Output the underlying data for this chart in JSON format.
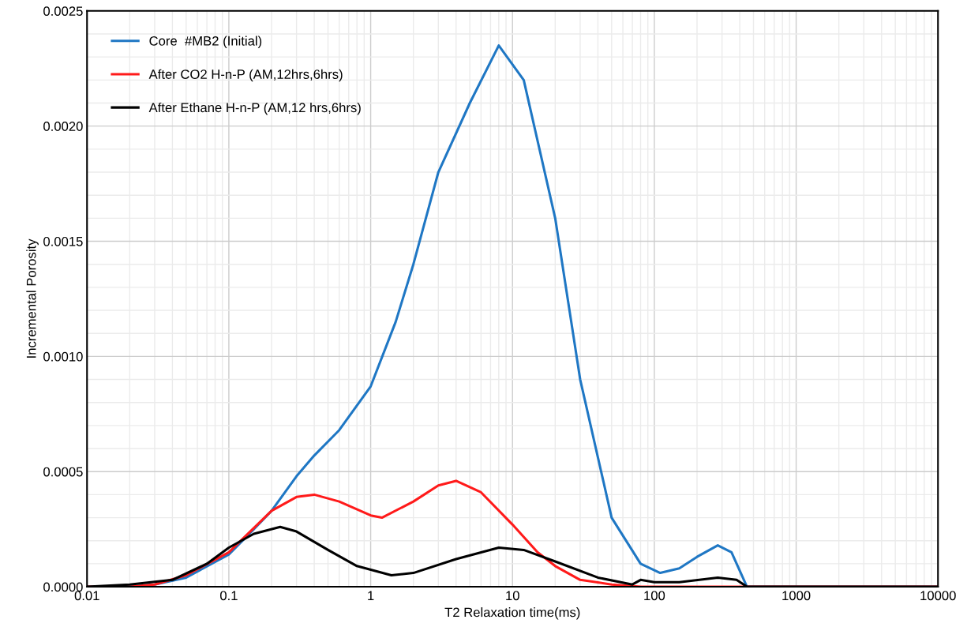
{
  "chart_data": {
    "type": "line",
    "xlabel": "T2 Relaxation time(ms)",
    "ylabel": "Incremental Porosity",
    "log": "x",
    "xlim": [
      0.01,
      10000
    ],
    "xticks": [
      0.01,
      0.1,
      1,
      10,
      100,
      1000,
      10000
    ],
    "ylim": [
      0,
      0.0025
    ],
    "yticks": [
      {
        "value": 0,
        "label": "0.0000"
      },
      {
        "value": 0.0005,
        "label": "0.0005"
      },
      {
        "value": 0.001,
        "label": "0.0010"
      },
      {
        "value": 0.0015,
        "label": "0.0015"
      },
      {
        "value": 0.002,
        "label": "0.0020"
      },
      {
        "value": 0.0025,
        "label": "0.0025"
      }
    ],
    "grid": true,
    "legend": "top left",
    "marker": "none",
    "line_style": "solid",
    "series": [
      {
        "name": "Core  #MB2 (Initial)",
        "color": "#1f77c4",
        "x": [
          0.01,
          0.02,
          0.03,
          0.05,
          0.1,
          0.15,
          0.2,
          0.3,
          0.4,
          0.6,
          1,
          1.5,
          2,
          3,
          5,
          8,
          12,
          20,
          30,
          50,
          80,
          110,
          150,
          200,
          280,
          350,
          450,
          10000
        ],
        "values": [
          0,
          0,
          1e-05,
          4e-05,
          0.00014,
          0.00025,
          0.00033,
          0.00048,
          0.00057,
          0.00068,
          0.00087,
          0.00115,
          0.0014,
          0.0018,
          0.0021,
          0.00235,
          0.0022,
          0.0016,
          0.0009,
          0.0003,
          0.0001,
          6e-05,
          8e-05,
          0.00013,
          0.00018,
          0.00015,
          0,
          0
        ]
      },
      {
        "name": "After CO2 H-n-P (AM,12hrs,6hrs)",
        "color": "#ff1a1a",
        "x": [
          0.01,
          0.02,
          0.03,
          0.05,
          0.1,
          0.2,
          0.3,
          0.4,
          0.6,
          1,
          1.2,
          2,
          3,
          4,
          6,
          10,
          15,
          20,
          30,
          50,
          80,
          10000
        ],
        "values": [
          0,
          0,
          1e-05,
          5e-05,
          0.00015,
          0.00033,
          0.00039,
          0.0004,
          0.00037,
          0.00031,
          0.0003,
          0.00037,
          0.00044,
          0.00046,
          0.00041,
          0.00027,
          0.00015,
          9e-05,
          3e-05,
          1e-05,
          0,
          0
        ]
      },
      {
        "name": "After Ethane H-n-P (AM,12 hrs,6hrs)",
        "color": "#000000",
        "x": [
          0.01,
          0.02,
          0.04,
          0.07,
          0.1,
          0.15,
          0.23,
          0.3,
          0.5,
          0.8,
          1.4,
          2,
          4,
          8,
          12,
          20,
          40,
          70,
          80,
          100,
          150,
          280,
          380,
          450,
          10000
        ],
        "values": [
          0,
          1e-05,
          3e-05,
          0.0001,
          0.00017,
          0.00023,
          0.00026,
          0.00024,
          0.00016,
          9e-05,
          5e-05,
          6e-05,
          0.00012,
          0.00017,
          0.00016,
          0.00011,
          4e-05,
          1e-05,
          3e-05,
          2e-05,
          2e-05,
          4e-05,
          3e-05,
          0,
          0
        ]
      }
    ]
  }
}
